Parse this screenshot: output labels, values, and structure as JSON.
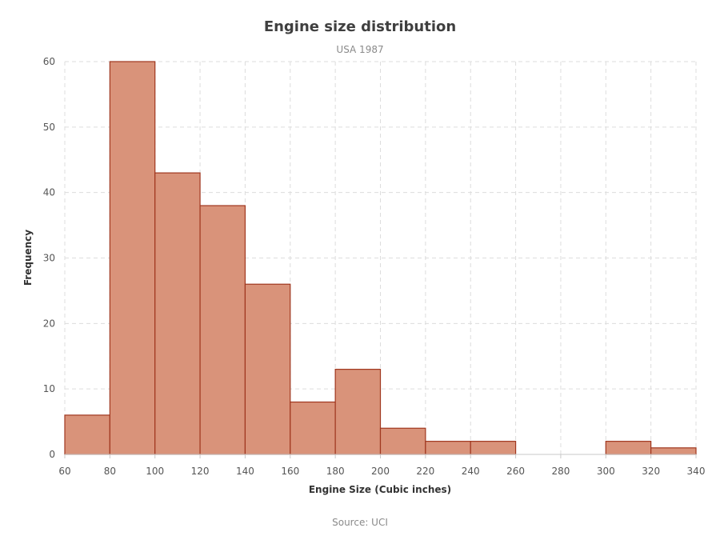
{
  "chart_data": {
    "type": "bar",
    "title": "Engine size distribution",
    "subtitle": "USA 1987",
    "xlabel": "Engine Size (Cubic inches)",
    "ylabel": "Frequency",
    "source": "Source: UCI",
    "xlim": [
      60,
      340
    ],
    "ylim": [
      0,
      60
    ],
    "x_ticks": [
      60,
      80,
      100,
      120,
      140,
      160,
      180,
      200,
      220,
      240,
      260,
      280,
      300,
      320,
      340
    ],
    "y_ticks": [
      0,
      10,
      20,
      30,
      40,
      50,
      60
    ],
    "grid": true,
    "bins": [
      {
        "from": 60,
        "to": 80,
        "value": 6
      },
      {
        "from": 80,
        "to": 100,
        "value": 60
      },
      {
        "from": 100,
        "to": 120,
        "value": 43
      },
      {
        "from": 120,
        "to": 140,
        "value": 38
      },
      {
        "from": 140,
        "to": 160,
        "value": 26
      },
      {
        "from": 160,
        "to": 180,
        "value": 8
      },
      {
        "from": 180,
        "to": 200,
        "value": 13
      },
      {
        "from": 200,
        "to": 220,
        "value": 4
      },
      {
        "from": 220,
        "to": 240,
        "value": 2
      },
      {
        "from": 240,
        "to": 260,
        "value": 2
      },
      {
        "from": 260,
        "to": 280,
        "value": 0
      },
      {
        "from": 280,
        "to": 300,
        "value": 0
      },
      {
        "from": 300,
        "to": 320,
        "value": 2
      },
      {
        "from": 320,
        "to": 340,
        "value": 1
      }
    ],
    "bar_color": "#d9937a",
    "bar_border_color": "#a0371f"
  }
}
